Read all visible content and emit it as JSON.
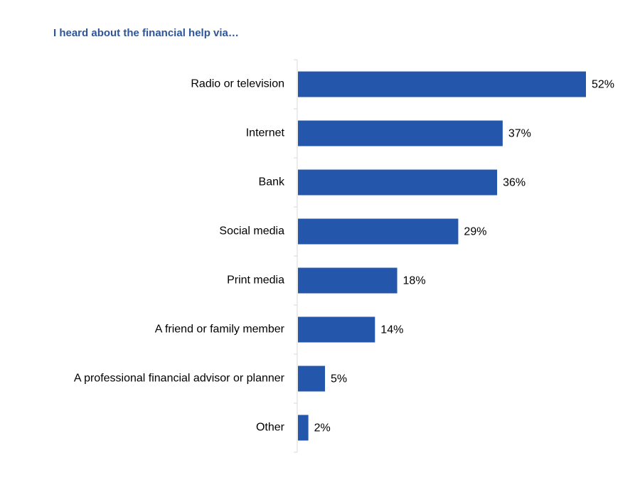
{
  "chart_data": {
    "type": "bar",
    "orientation": "horizontal",
    "title": "I heard about the financial help via…",
    "categories": [
      "Radio or television",
      "Internet",
      "Bank",
      "Social media",
      "Print media",
      "A friend or family member",
      "A professional financial advisor or planner",
      "Other"
    ],
    "values": [
      52,
      37,
      36,
      29,
      18,
      14,
      5,
      2
    ],
    "value_labels": [
      "52%",
      "37%",
      "36%",
      "29%",
      "18%",
      "14%",
      "5%",
      "2%"
    ],
    "color": "#2457ab"
  }
}
